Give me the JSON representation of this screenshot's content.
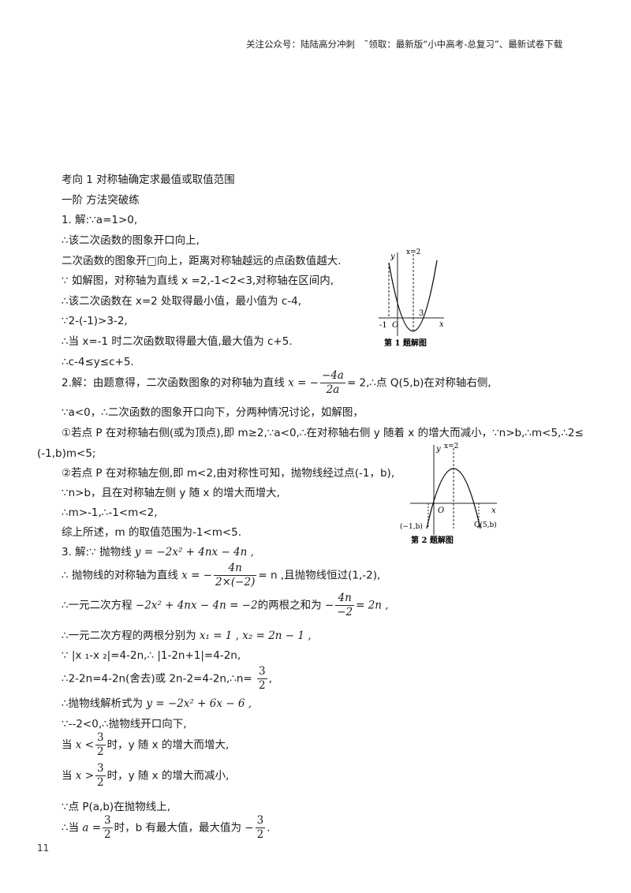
{
  "header": "关注公众号：陆陆高分冲刺　˜领取：最新版“小中高考-总复习”、最新试卷下载",
  "lines": {
    "l1": "考向 1 对称轴确定求最值或取值范围",
    "l2": "一阶 方法突破练",
    "l3": "1. 解:∵a=1>0,",
    "l4": "∴该二次函数的图象开口向上,",
    "l5": "二次函数的图象开□向上，距离对称轴越远的点函数值越大.",
    "l6": "∵ 如解图，对称轴为直线 x =2,-1<2<3,对称轴在区间内,",
    "l7": "∴该二次函数在 x=2 处取得最小值，最小值为 c-4,",
    "l8": "∵2-(-1)>3-2,",
    "l9": "∴当 x=-1 时二次函数取得最大值,最大值为 c+5.",
    "l10": "∴c-4≤y≤c+5.",
    "l11": {
      "pre": "2.解：由题意得，二次函数图象的对称轴为直线 ",
      "math": "x = −",
      "num": "−4a",
      "den": "2a",
      "post": "= 2,∴点 Q(5,b)在对称轴右侧,"
    },
    "l12": "∵a<0，∴二次函数的图象开口向下，分两种情况讨论，如解图，",
    "l13": "①若点 P 在对称轴右侧(或为顶点),即 m≥2,∵a<0,∴在对称轴右侧 y 随着 x 的增大而减小，∵n>b,∴m<5,∴2≤",
    "l14": "(-1,b)m<5;",
    "l15": "②若点 P 在对称轴左侧,即 m<2,由对称性可知，抛物线经过点(-1，b),",
    "l16": "∵n>b，且在对称轴左侧 y 随 x 的增大而增大,",
    "l17": "∴m>-1,∴-1<m<2,",
    "l18": "综上所述，m 的取值范围为-1<m<5.",
    "l19": {
      "pre": "3. 解:∵ 抛物线 ",
      "math": "y = −2x² + 4nx − 4n ,"
    },
    "l20": {
      "pre": "∴ 抛物线的对称轴为直线 ",
      "math": "x = −",
      "num": "4n",
      "den": "2×(−2)",
      "post": "= n ,且抛物线恒过(1,-2),"
    },
    "l21": {
      "pre": "∴一元二次方程 ",
      "math": "−2x² + 4nx − 4n = −2",
      "mid": "的两根之和为 −",
      "num": "4n",
      "den": "−2",
      "post": "= 2n ,"
    },
    "l22": {
      "pre": "∴一元二次方程的两根分别为 ",
      "math": "x₁ = 1 , x₂ = 2n − 1 ,"
    },
    "l23": "∵ |x ₁-x ₂|=4-2n,∴ |1-2n+1|=4-2n,",
    "l24": {
      "pre": "∴2-2n=4-2n(舍去)或 2n-2=4-2n,∴n= ",
      "num": "3",
      "den": "2",
      "post": ","
    },
    "l25": {
      "pre": "∴抛物线解析式为 ",
      "math": "y = −2x² + 6x − 6 ,"
    },
    "l26": "∵--2<0,∴抛物线开口向下,",
    "l27": {
      "pre": "当 ",
      "math": "x <",
      "num": "3",
      "den": "2",
      "post": "时，y 随 x 的增大而增大,"
    },
    "l28": {
      "pre": "当 ",
      "math": "x >",
      "num": "3",
      "den": "2",
      "post": "时，y 随 x 的增大而减小,"
    },
    "l29": "∵点 P(a,b)在抛物线上,",
    "l30": {
      "pre": "∴当 ",
      "math": "a =",
      "num": "3",
      "den": "2",
      "mid": "时，b 有最大值，最大值为 −",
      "num2": "3",
      "den2": "2",
      "post": "."
    }
  },
  "figure1": {
    "y_label": "y",
    "x_label": "x",
    "axis_label": "x=2",
    "tick_left": "-1",
    "origin": "O",
    "tick_right": "3",
    "caption": "第 1 题解图"
  },
  "figure2": {
    "y_label": "y",
    "x_label": "x",
    "axis_label": "x=2",
    "origin": "O",
    "point_left": "(−1,b)",
    "point_right": "Q(5,b)",
    "caption": "第 2 题解图"
  },
  "page_number": "11"
}
